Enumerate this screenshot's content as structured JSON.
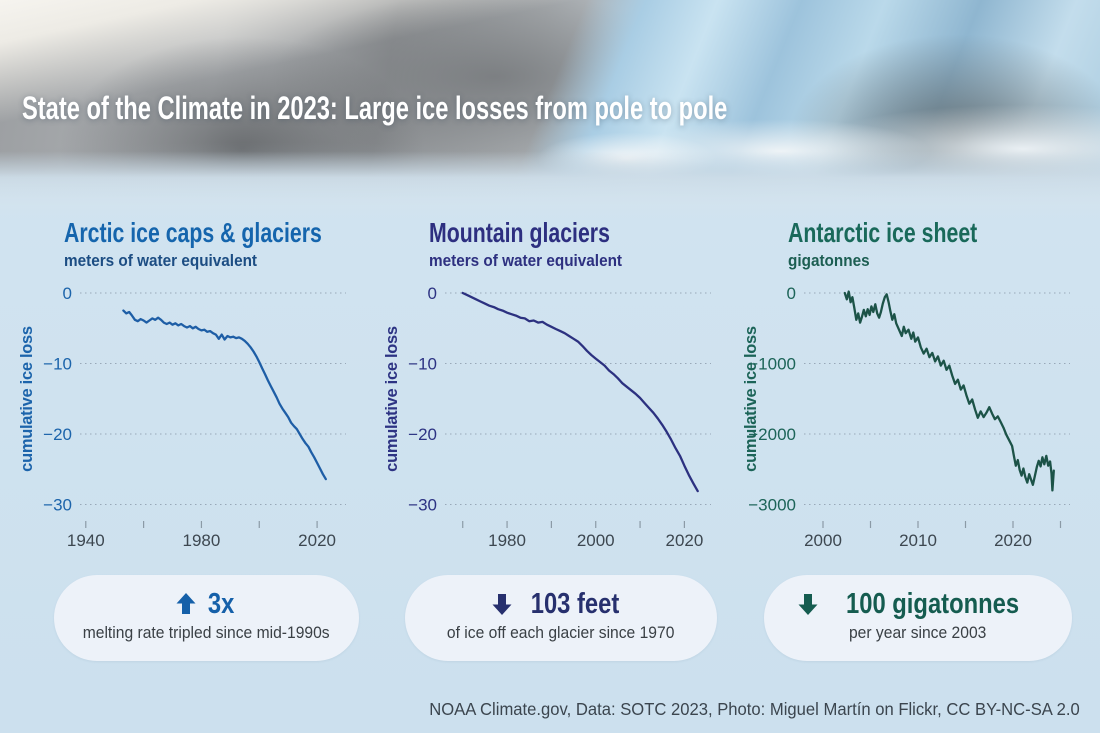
{
  "page": {
    "title": "State of the Climate in 2023: Large ice losses from pole to pole",
    "footer": "NOAA Climate.gov, Data: SOTC 2023, Photo: Miguel Martín on Flickr, CC BY-NC-SA 2.0",
    "background_color": "#cfe2ef"
  },
  "chart_data": [
    {
      "type": "line",
      "title": "Arctic ice caps & glaciers",
      "subtitle": "meters of water equivalent",
      "ylabel": "cumulative ice loss",
      "title_color": "#1565ad",
      "subtitle_color": "#1c4d83",
      "accent": "#1c64ab",
      "line_color": "#1e5ea6",
      "grid": true,
      "legend": "none",
      "xlim": [
        1938,
        2030
      ],
      "ylim": [
        -30,
        0
      ],
      "y_ticks": [
        0,
        -10,
        -20,
        -30
      ],
      "x_ticks": [
        1940,
        1960,
        1980,
        2000,
        2020
      ],
      "x_tick_labels": [
        "1940",
        "",
        "1980",
        "",
        "2020"
      ],
      "series": [
        [
          1953,
          -2.5
        ],
        [
          1954,
          -2.9
        ],
        [
          1955,
          -2.7
        ],
        [
          1956,
          -3.2
        ],
        [
          1957,
          -3.8
        ],
        [
          1958,
          -4.0
        ],
        [
          1959,
          -3.7
        ],
        [
          1960,
          -3.9
        ],
        [
          1961,
          -4.2
        ],
        [
          1962,
          -3.9
        ],
        [
          1963,
          -3.6
        ],
        [
          1964,
          -3.8
        ],
        [
          1965,
          -3.5
        ],
        [
          1966,
          -3.8
        ],
        [
          1967,
          -4.2
        ],
        [
          1968,
          -4.4
        ],
        [
          1969,
          -4.2
        ],
        [
          1970,
          -4.5
        ],
        [
          1971,
          -4.3
        ],
        [
          1972,
          -4.6
        ],
        [
          1973,
          -4.4
        ],
        [
          1974,
          -4.7
        ],
        [
          1975,
          -4.9
        ],
        [
          1976,
          -4.7
        ],
        [
          1977,
          -5.0
        ],
        [
          1978,
          -4.8
        ],
        [
          1979,
          -5.1
        ],
        [
          1980,
          -5.3
        ],
        [
          1981,
          -5.2
        ],
        [
          1982,
          -5.5
        ],
        [
          1983,
          -5.4
        ],
        [
          1984,
          -5.7
        ],
        [
          1985,
          -5.9
        ],
        [
          1986,
          -6.5
        ],
        [
          1987,
          -5.9
        ],
        [
          1988,
          -6.6
        ],
        [
          1989,
          -6.1
        ],
        [
          1990,
          -6.3
        ],
        [
          1991,
          -6.2
        ],
        [
          1992,
          -6.4
        ],
        [
          1993,
          -6.3
        ],
        [
          1994,
          -6.5
        ],
        [
          1995,
          -6.8
        ],
        [
          1996,
          -7.2
        ],
        [
          1997,
          -7.7
        ],
        [
          1998,
          -8.3
        ],
        [
          1999,
          -9.0
        ],
        [
          2000,
          -9.8
        ],
        [
          2001,
          -10.7
        ],
        [
          2002,
          -11.5
        ],
        [
          2003,
          -12.4
        ],
        [
          2004,
          -13.2
        ],
        [
          2005,
          -14.0
        ],
        [
          2006,
          -14.8
        ],
        [
          2007,
          -15.7
        ],
        [
          2008,
          -16.4
        ],
        [
          2009,
          -17.0
        ],
        [
          2010,
          -17.6
        ],
        [
          2011,
          -18.4
        ],
        [
          2012,
          -18.9
        ],
        [
          2013,
          -19.3
        ],
        [
          2014,
          -20.0
        ],
        [
          2015,
          -20.7
        ],
        [
          2016,
          -21.3
        ],
        [
          2017,
          -21.8
        ],
        [
          2018,
          -22.6
        ],
        [
          2019,
          -23.3
        ],
        [
          2020,
          -24.1
        ],
        [
          2021,
          -24.9
        ],
        [
          2022,
          -25.7
        ],
        [
          2023,
          -26.4
        ]
      ]
    },
    {
      "type": "line",
      "title": "Mountain glaciers",
      "subtitle": "meters of water equivalent",
      "ylabel": "cumulative ice loss",
      "title_color": "#2d2f80",
      "subtitle_color": "#2d3080",
      "accent": "#2d3383",
      "line_color": "#2c3180",
      "grid": true,
      "legend": "none",
      "xlim": [
        1966,
        2026
      ],
      "ylim": [
        -30,
        0
      ],
      "y_ticks": [
        0,
        -10,
        -20,
        -30
      ],
      "x_ticks": [
        1970,
        1980,
        1990,
        2000,
        2010,
        2020
      ],
      "x_tick_labels": [
        "",
        "1980",
        "",
        "2000",
        "",
        "2020"
      ],
      "series": [
        [
          1970,
          0
        ],
        [
          1971,
          -0.3
        ],
        [
          1972,
          -0.6
        ],
        [
          1973,
          -0.9
        ],
        [
          1974,
          -1.2
        ],
        [
          1975,
          -1.5
        ],
        [
          1976,
          -1.8
        ],
        [
          1977,
          -2.0
        ],
        [
          1978,
          -2.3
        ],
        [
          1979,
          -2.5
        ],
        [
          1980,
          -2.8
        ],
        [
          1981,
          -3.0
        ],
        [
          1982,
          -3.2
        ],
        [
          1983,
          -3.5
        ],
        [
          1984,
          -3.6
        ],
        [
          1985,
          -4.0
        ],
        [
          1986,
          -3.9
        ],
        [
          1987,
          -4.2
        ],
        [
          1988,
          -4.1
        ],
        [
          1989,
          -4.5
        ],
        [
          1990,
          -4.8
        ],
        [
          1991,
          -5.1
        ],
        [
          1992,
          -5.4
        ],
        [
          1993,
          -5.7
        ],
        [
          1994,
          -6.1
        ],
        [
          1995,
          -6.5
        ],
        [
          1996,
          -6.9
        ],
        [
          1997,
          -7.5
        ],
        [
          1998,
          -8.2
        ],
        [
          1999,
          -8.8
        ],
        [
          2000,
          -9.3
        ],
        [
          2001,
          -9.8
        ],
        [
          2002,
          -10.3
        ],
        [
          2003,
          -11.0
        ],
        [
          2004,
          -11.5
        ],
        [
          2005,
          -12.1
        ],
        [
          2006,
          -12.8
        ],
        [
          2007,
          -13.3
        ],
        [
          2008,
          -13.8
        ],
        [
          2009,
          -14.3
        ],
        [
          2010,
          -14.9
        ],
        [
          2011,
          -15.6
        ],
        [
          2012,
          -16.3
        ],
        [
          2013,
          -17.0
        ],
        [
          2014,
          -17.8
        ],
        [
          2015,
          -18.7
        ],
        [
          2016,
          -19.7
        ],
        [
          2017,
          -20.8
        ],
        [
          2018,
          -22.0
        ],
        [
          2019,
          -23.1
        ],
        [
          2020,
          -24.5
        ],
        [
          2021,
          -25.8
        ],
        [
          2022,
          -27.0
        ],
        [
          2023,
          -28.1
        ]
      ]
    },
    {
      "type": "line",
      "title": "Antarctic ice sheet",
      "subtitle": "gigatonnes",
      "ylabel": "cumulative ice loss",
      "title_color": "#19695a",
      "subtitle_color": "#1c5e52",
      "accent": "#1c6458",
      "line_color": "#1c5348",
      "grid": true,
      "legend": "none",
      "xlim": [
        1998,
        2026
      ],
      "ylim": [
        -3000,
        0
      ],
      "y_ticks": [
        0,
        -1000,
        -2000,
        -3000
      ],
      "x_ticks": [
        2000,
        2005,
        2010,
        2015,
        2020,
        2025
      ],
      "x_tick_labels": [
        "2000",
        "",
        "2010",
        "",
        "2020",
        ""
      ],
      "series": [
        [
          2002.3,
          0
        ],
        [
          2002.5,
          -90
        ],
        [
          2002.7,
          20
        ],
        [
          2002.9,
          -130
        ],
        [
          2003.1,
          -60
        ],
        [
          2003.3,
          -210
        ],
        [
          2003.5,
          -380
        ],
        [
          2003.7,
          -290
        ],
        [
          2003.9,
          -420
        ],
        [
          2004.1,
          -340
        ],
        [
          2004.3,
          -240
        ],
        [
          2004.5,
          -330
        ],
        [
          2004.7,
          -230
        ],
        [
          2004.9,
          -310
        ],
        [
          2005.1,
          -190
        ],
        [
          2005.3,
          -270
        ],
        [
          2005.5,
          -160
        ],
        [
          2005.7,
          -290
        ],
        [
          2005.9,
          -350
        ],
        [
          2006.1,
          -270
        ],
        [
          2006.3,
          -150
        ],
        [
          2006.5,
          -60
        ],
        [
          2006.7,
          -20
        ],
        [
          2006.9,
          -130
        ],
        [
          2007.1,
          -260
        ],
        [
          2007.3,
          -380
        ],
        [
          2007.5,
          -300
        ],
        [
          2007.7,
          -430
        ],
        [
          2008,
          -520
        ],
        [
          2008.3,
          -610
        ],
        [
          2008.5,
          -480
        ],
        [
          2008.7,
          -570
        ],
        [
          2009,
          -520
        ],
        [
          2009.3,
          -650
        ],
        [
          2009.5,
          -560
        ],
        [
          2009.7,
          -690
        ],
        [
          2010,
          -630
        ],
        [
          2010.3,
          -770
        ],
        [
          2010.6,
          -860
        ],
        [
          2010.9,
          -790
        ],
        [
          2011.2,
          -910
        ],
        [
          2011.5,
          -850
        ],
        [
          2011.8,
          -970
        ],
        [
          2012.1,
          -900
        ],
        [
          2012.4,
          -1030
        ],
        [
          2012.7,
          -960
        ],
        [
          2013,
          -1090
        ],
        [
          2013.3,
          -1030
        ],
        [
          2013.6,
          -1170
        ],
        [
          2013.9,
          -1290
        ],
        [
          2014.2,
          -1230
        ],
        [
          2014.5,
          -1370
        ],
        [
          2014.8,
          -1310
        ],
        [
          2015.1,
          -1450
        ],
        [
          2015.4,
          -1570
        ],
        [
          2015.7,
          -1510
        ],
        [
          2016,
          -1650
        ],
        [
          2016.3,
          -1770
        ],
        [
          2016.6,
          -1680
        ],
        [
          2016.9,
          -1760
        ],
        [
          2017.2,
          -1700
        ],
        [
          2017.5,
          -1620
        ],
        [
          2017.8,
          -1710
        ],
        [
          2018.1,
          -1790
        ],
        [
          2018.4,
          -1750
        ],
        [
          2018.7,
          -1830
        ],
        [
          2019,
          -1910
        ],
        [
          2019.3,
          -2010
        ],
        [
          2019.6,
          -2090
        ],
        [
          2019.9,
          -2170
        ],
        [
          2020.1,
          -2310
        ],
        [
          2020.3,
          -2450
        ],
        [
          2020.5,
          -2370
        ],
        [
          2020.7,
          -2510
        ],
        [
          2020.9,
          -2590
        ],
        [
          2021.1,
          -2490
        ],
        [
          2021.3,
          -2610
        ],
        [
          2021.5,
          -2690
        ],
        [
          2021.7,
          -2570
        ],
        [
          2021.9,
          -2650
        ],
        [
          2022.1,
          -2720
        ],
        [
          2022.3,
          -2600
        ],
        [
          2022.5,
          -2470
        ],
        [
          2022.7,
          -2380
        ],
        [
          2022.9,
          -2460
        ],
        [
          2023.1,
          -2330
        ],
        [
          2023.3,
          -2430
        ],
        [
          2023.5,
          -2310
        ],
        [
          2023.7,
          -2450
        ],
        [
          2023.9,
          -2390
        ],
        [
          2024.05,
          -2560
        ],
        [
          2024.15,
          -2800
        ],
        [
          2024.3,
          -2520
        ]
      ]
    }
  ],
  "badges": [
    {
      "direction": "up",
      "headline": "3x",
      "sub": "melting rate tripled since mid-1990s",
      "color": "#1560a9"
    },
    {
      "direction": "down",
      "headline": "103 feet",
      "sub": "of ice off each glacier since 1970",
      "color": "#27306e"
    },
    {
      "direction": "down",
      "headline": "100 gigatonnes",
      "sub": "per year since 2003",
      "color": "#155c50"
    }
  ],
  "style": {
    "grid_color": "#98a8b8",
    "tick_color": "#8b9aa6",
    "x_tick_label_color": "#3d4750"
  }
}
